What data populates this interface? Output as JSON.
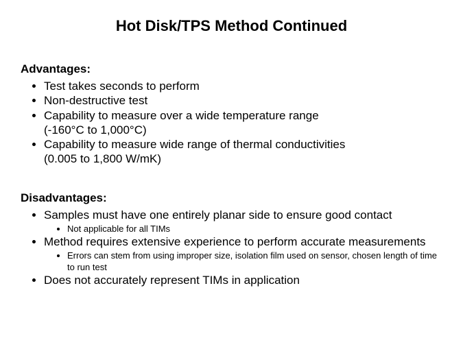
{
  "title": "Hot Disk/TPS Method Continued",
  "advantages": {
    "heading": "Advantages:",
    "items": [
      {
        "text": "Test takes seconds to perform"
      },
      {
        "text": "Non-destructive test"
      },
      {
        "text": "Capability to measure over a wide temperature range",
        "cont": "(-160°C to 1,000°C)"
      },
      {
        "text": "Capability to measure wide range of thermal conductivities",
        "cont": "(0.005 to 1,800 W/mK)"
      }
    ]
  },
  "disadvantages": {
    "heading": "Disadvantages:",
    "items": [
      {
        "text": "Samples must have one entirely planar side to ensure good contact",
        "sub": [
          "Not applicable for all TIMs"
        ]
      },
      {
        "text": "Method requires extensive experience to perform accurate measurements",
        "sub": [
          "Errors can stem from using improper size, isolation film used on sensor, chosen length of time to run test"
        ]
      },
      {
        "text": "Does not accurately represent TIMs in application"
      }
    ]
  },
  "style": {
    "title_fontsize": 22,
    "body_fontsize": 17,
    "sub_fontsize": 13,
    "text_color": "#000000",
    "background_color": "#ffffff",
    "font_family": "Arial"
  }
}
